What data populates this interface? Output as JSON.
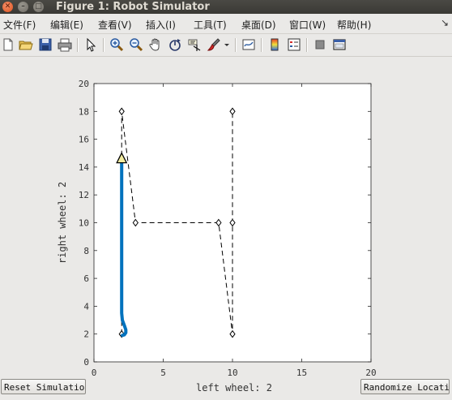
{
  "window": {
    "title": "Figure 1: Robot Simulator"
  },
  "menu": {
    "items": [
      "文件(F)",
      "编辑(E)",
      "查看(V)",
      "插入(I)",
      "工具(T)",
      "桌面(D)",
      "窗口(W)",
      "帮助(H)"
    ],
    "overflow_arrow": "↘"
  },
  "toolbar": {
    "icons": [
      "new-figure-icon",
      "open-file-icon",
      "save-icon",
      "print-icon",
      "pointer-icon",
      "zoom-in-icon",
      "zoom-out-icon",
      "pan-hand-icon",
      "rotate-3d-icon",
      "data-cursor-icon",
      "brush-icon",
      "brush-dropdown-icon",
      "link-plot-icon",
      "colorbar-icon",
      "legend-icon",
      "hide-plot-tools-icon",
      "show-plot-tools-icon"
    ]
  },
  "buttons": {
    "reset": "Reset Simulation",
    "randomize": "Randomize Location"
  },
  "chart_data": {
    "type": "line",
    "xlabel": "left wheel: 2",
    "ylabel": "right wheel: 2",
    "xlim": [
      0,
      20
    ],
    "ylim": [
      0,
      20
    ],
    "xticks": [
      0,
      5,
      10,
      15,
      20
    ],
    "yticks": [
      0,
      2,
      4,
      6,
      8,
      10,
      12,
      14,
      16,
      18,
      20
    ],
    "grid": false,
    "series": [
      {
        "style": "dashed-black-diamond-markers",
        "x": [
          2,
          2,
          3,
          9,
          10,
          10,
          10
        ],
        "y": [
          2,
          18,
          10,
          10,
          2,
          10,
          18
        ]
      },
      {
        "style": "solid-blue-thick",
        "color": "#0072bd",
        "x": [
          2.0,
          2.0,
          2.0,
          2.0,
          2.05,
          2.2,
          2.3,
          2.3,
          2.2,
          2.05
        ],
        "y": [
          14.5,
          10,
          6,
          3.5,
          3.0,
          2.6,
          2.3,
          2.1,
          1.95,
          1.9
        ]
      }
    ],
    "robot_marker": {
      "x": 2,
      "y": 14.6
    }
  }
}
